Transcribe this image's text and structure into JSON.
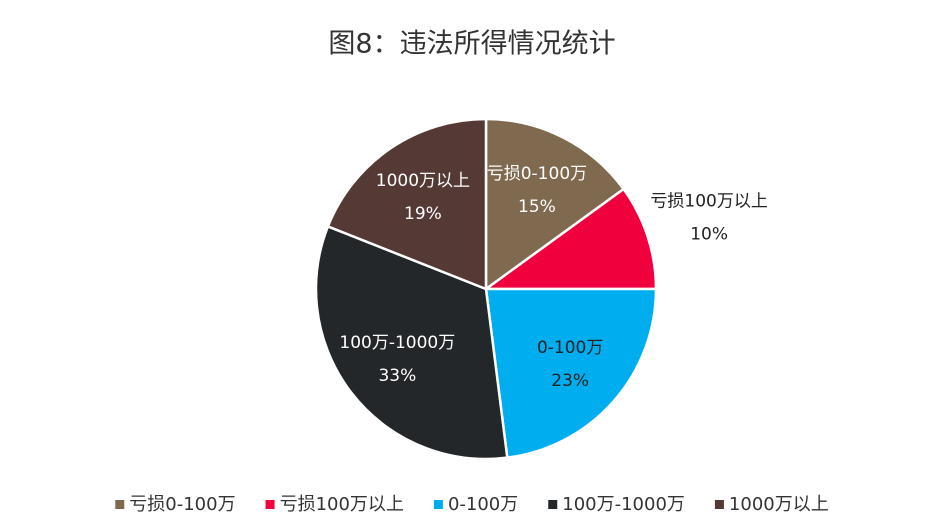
{
  "chart_data": {
    "type": "pie",
    "title": "图8：违法所得情况统计",
    "categories": [
      "亏损0-100万",
      "亏损100万以上",
      "0-100万",
      "100万-1000万",
      "1000万以上"
    ],
    "values": [
      15,
      10,
      23,
      33,
      19
    ],
    "value_labels": [
      "15%",
      "10%",
      "23%",
      "33%",
      "19%"
    ],
    "colors": [
      "#7f6a4f",
      "#f0003c",
      "#00aeef",
      "#24272a",
      "#553935"
    ],
    "legend": "bottom"
  }
}
